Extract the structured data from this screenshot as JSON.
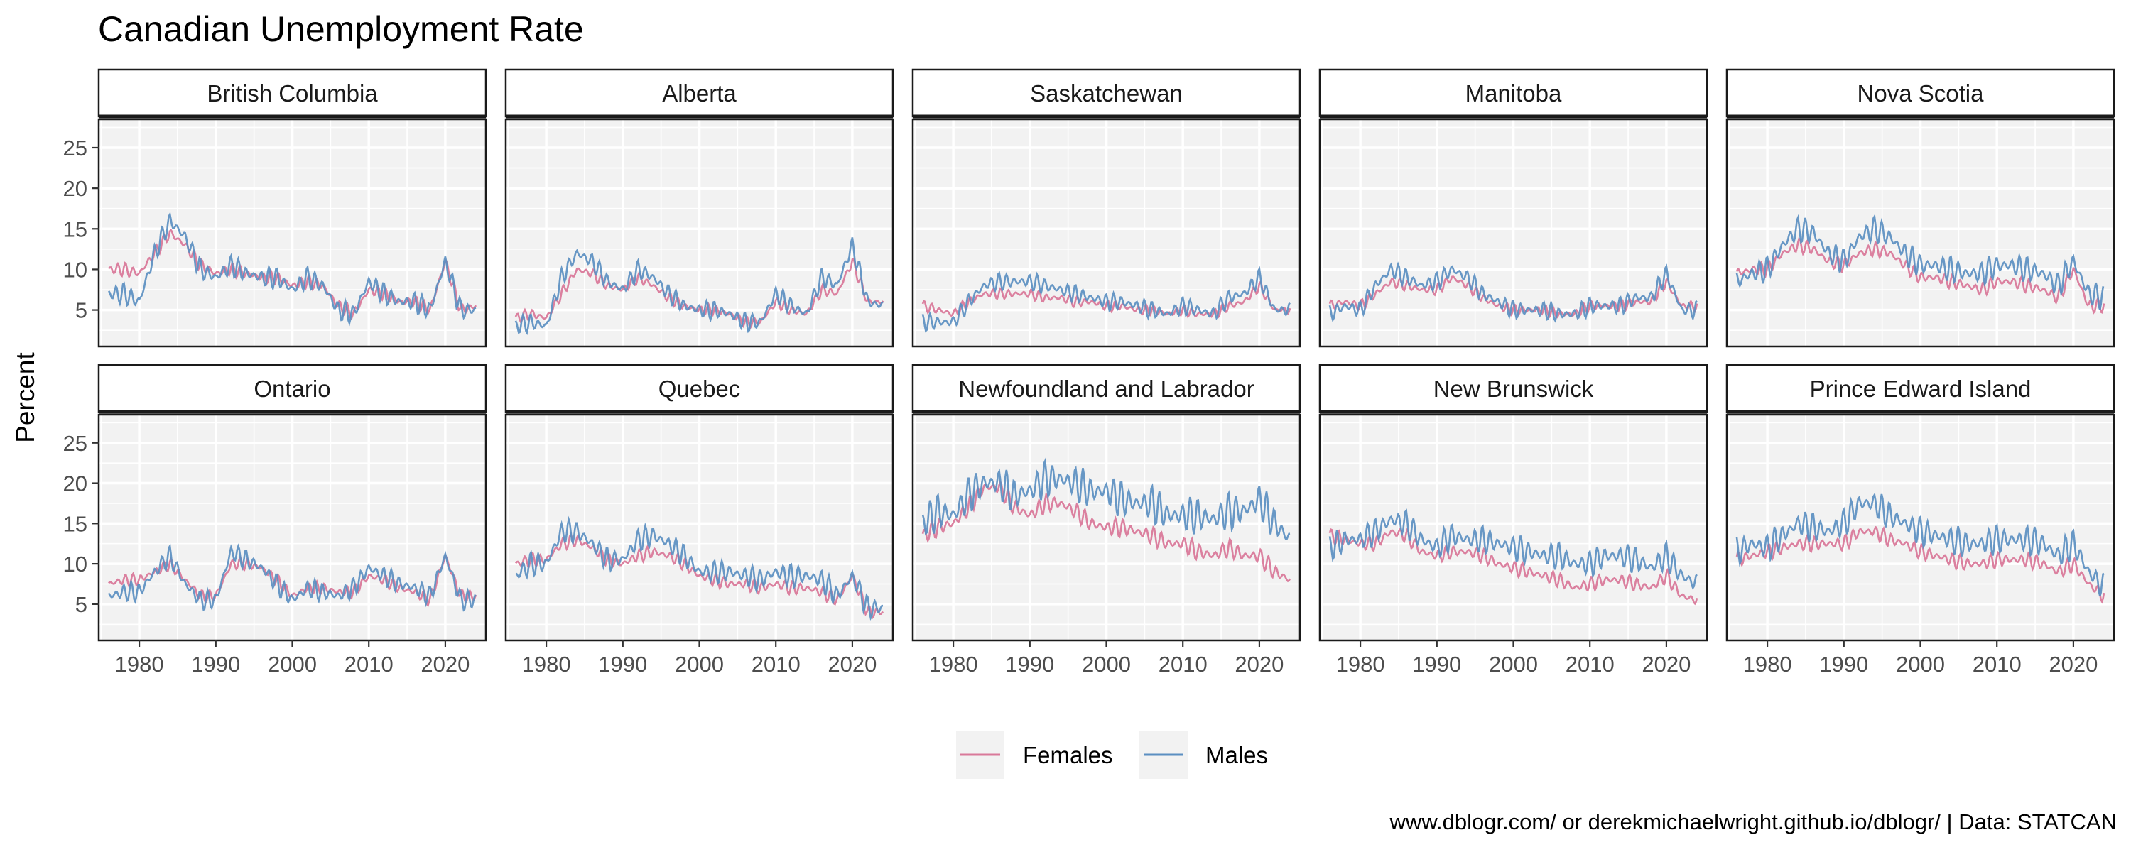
{
  "title": "Canadian Unemployment Rate",
  "ylabel": "Percent",
  "caption": "www.dblogr.com/ or derekmichaelwright.github.io/dblogr/ | Data: STATCAN",
  "colors": {
    "Females": "#d9799a",
    "Males": "#5b8fc1"
  },
  "chart_data": {
    "type": "line",
    "title": "Canadian Unemployment Rate",
    "ylabel": "Percent",
    "xlabel": "",
    "xlim": [
      1976,
      2024
    ],
    "ylim": [
      0.5,
      28.5
    ],
    "xticks": [
      1980,
      1990,
      2000,
      2010,
      2020
    ],
    "yticks": [
      5,
      10,
      15,
      20,
      25
    ],
    "grid": true,
    "legend": "bottom",
    "series_names": [
      "Females",
      "Males"
    ],
    "x_years": [
      1976,
      1978,
      1980,
      1982,
      1984,
      1986,
      1988,
      1990,
      1992,
      1994,
      1996,
      1998,
      2000,
      2002,
      2004,
      2006,
      2008,
      2010,
      2012,
      2014,
      2016,
      2018,
      2020,
      2022,
      2024
    ],
    "panels": [
      {
        "name": "British Columbia",
        "females": [
          10,
          10,
          9.5,
          12,
          14.5,
          13,
          10.5,
          9.5,
          10,
          9.5,
          9,
          9,
          8,
          8.5,
          8,
          5.5,
          4.5,
          7.5,
          7,
          6,
          6,
          5,
          11,
          5,
          5.5
        ],
        "males": [
          7,
          7,
          6,
          12,
          16,
          14,
          10,
          9,
          10.5,
          9.5,
          9,
          9,
          7.5,
          9,
          8,
          5,
          4.5,
          8.5,
          7,
          6,
          6,
          5,
          11,
          5,
          5
        ]
      },
      {
        "name": "Alberta",
        "females": [
          4,
          4.5,
          4,
          7,
          10,
          9.5,
          8,
          7.5,
          9,
          8,
          6.5,
          5.5,
          5,
          5,
          4.5,
          3.5,
          3.5,
          6,
          5,
          4.5,
          7.5,
          7,
          11,
          6,
          6
        ],
        "males": [
          3,
          3.5,
          3,
          9,
          12,
          11,
          8.5,
          7.5,
          10,
          9,
          7,
          5.5,
          5,
          5,
          4.5,
          3.5,
          3.5,
          7,
          5.5,
          4.5,
          9,
          8,
          13,
          6,
          5.5
        ]
      },
      {
        "name": "Saskatchewan",
        "females": [
          5.5,
          5,
          4.5,
          6,
          7,
          7,
          7,
          7,
          6.5,
          6.5,
          6,
          6,
          5.5,
          5.5,
          5,
          5,
          4.5,
          5,
          4.5,
          4.5,
          5.5,
          6,
          8,
          5,
          5
        ],
        "males": [
          3.5,
          3.5,
          3.5,
          6,
          8,
          8.5,
          8.5,
          8.5,
          8,
          7.5,
          7,
          6.5,
          6,
          6,
          5.5,
          5,
          4.5,
          5.5,
          5,
          4.5,
          6.5,
          7,
          9,
          5,
          5
        ]
      },
      {
        "name": "Manitoba",
        "females": [
          5.5,
          6,
          5.5,
          7,
          8.5,
          8,
          7.5,
          7.5,
          9,
          8,
          6.5,
          5.5,
          5,
          5,
          5,
          4.5,
          4.5,
          5.5,
          5.5,
          5.5,
          6,
          6,
          8.5,
          5.5,
          5.5
        ],
        "males": [
          4.5,
          5.5,
          5,
          8,
          10,
          9,
          8,
          8.5,
          10,
          9,
          7,
          6,
          5,
          5,
          5,
          4.5,
          4.5,
          5.5,
          5.5,
          5.5,
          6.5,
          6.5,
          9.5,
          5,
          5
        ]
      },
      {
        "name": "Nova Scotia",
        "females": [
          9.5,
          10,
          10,
          12,
          13,
          12.5,
          11,
          10.5,
          12,
          12.5,
          12,
          10.5,
          9,
          9,
          8.5,
          8,
          7.5,
          8.5,
          8.5,
          8,
          7.5,
          6.5,
          10,
          5.5,
          5.5
        ],
        "males": [
          8.5,
          9.5,
          10,
          13,
          15,
          14.5,
          12,
          11,
          14,
          15,
          14,
          12,
          10.5,
          10.5,
          10,
          9.5,
          9.5,
          10.5,
          10.5,
          10,
          9.5,
          8,
          11,
          7,
          6.5
        ]
      },
      {
        "name": "Ontario",
        "females": [
          7.5,
          8,
          8,
          9,
          10,
          8,
          6,
          6,
          10,
          10,
          9.5,
          8,
          6,
          7,
          7,
          6.5,
          6.5,
          8.5,
          8,
          7,
          6.5,
          5.5,
          11,
          6,
          6
        ],
        "males": [
          6,
          6.5,
          6.5,
          9,
          11,
          7.5,
          5.5,
          5.5,
          11.5,
          10.5,
          9.5,
          7.5,
          5.5,
          7,
          6.5,
          6,
          7,
          9.5,
          8.5,
          7.5,
          7,
          6,
          11,
          5.5,
          5.5
        ]
      },
      {
        "name": "Quebec",
        "females": [
          10,
          10.5,
          10.5,
          12.5,
          13,
          12,
          10.5,
          10,
          11,
          11.5,
          11,
          10,
          8.5,
          8,
          7.5,
          7.5,
          7,
          7.5,
          7,
          7,
          6.5,
          5.5,
          8.5,
          4,
          4
        ],
        "males": [
          8.5,
          10,
          10,
          14,
          14,
          12.5,
          10.5,
          10.5,
          13,
          13.5,
          12.5,
          11,
          9,
          9,
          9,
          8.5,
          8,
          9,
          8.5,
          8.5,
          8,
          6,
          8.5,
          4.5,
          4.5
        ]
      },
      {
        "name": "Newfoundland and Labrador",
        "females": [
          13.5,
          14.5,
          15,
          17,
          19.5,
          19.5,
          17,
          16,
          17.5,
          17.5,
          16.5,
          15,
          14.5,
          14.5,
          14,
          13.5,
          12.5,
          12.5,
          11.5,
          11,
          12,
          11,
          11,
          9,
          8
        ],
        "males": [
          15,
          16.5,
          16,
          18.5,
          20,
          20,
          18.5,
          19,
          20.5,
          20.5,
          20,
          19,
          19,
          18,
          17.5,
          17.5,
          16,
          16,
          16,
          15.5,
          16.5,
          16.5,
          18,
          15,
          13
        ]
      },
      {
        "name": "New Brunswick",
        "females": [
          13.5,
          13,
          12.5,
          12.5,
          14,
          13.5,
          11.5,
          11,
          11.5,
          11.5,
          11,
          10,
          9.5,
          9,
          8.5,
          8,
          7,
          7.5,
          8,
          8,
          7.5,
          7,
          8.5,
          6,
          5.5
        ],
        "males": [
          12,
          13,
          13,
          14,
          15.5,
          15,
          13,
          12,
          13.5,
          13,
          13,
          12.5,
          12,
          11.5,
          11,
          11,
          10,
          10,
          11,
          11,
          10.5,
          9.5,
          11,
          8.5,
          7.5
        ]
      },
      {
        "name": "Prince Edward Island",
        "females": [
          10.5,
          11,
          11.5,
          12,
          12.5,
          12.5,
          12.5,
          12.5,
          14,
          14,
          13,
          12.5,
          11.5,
          11,
          10.5,
          10,
          10,
          10.5,
          10.5,
          10.5,
          10,
          9,
          10,
          7.5,
          6
        ],
        "males": [
          11.5,
          12.5,
          12,
          13.5,
          15,
          14.5,
          14,
          15,
          17.5,
          17.5,
          16,
          15,
          14,
          13.5,
          13,
          12.5,
          12.5,
          13,
          13,
          13,
          12.5,
          11,
          12.5,
          9,
          7
        ]
      }
    ]
  }
}
